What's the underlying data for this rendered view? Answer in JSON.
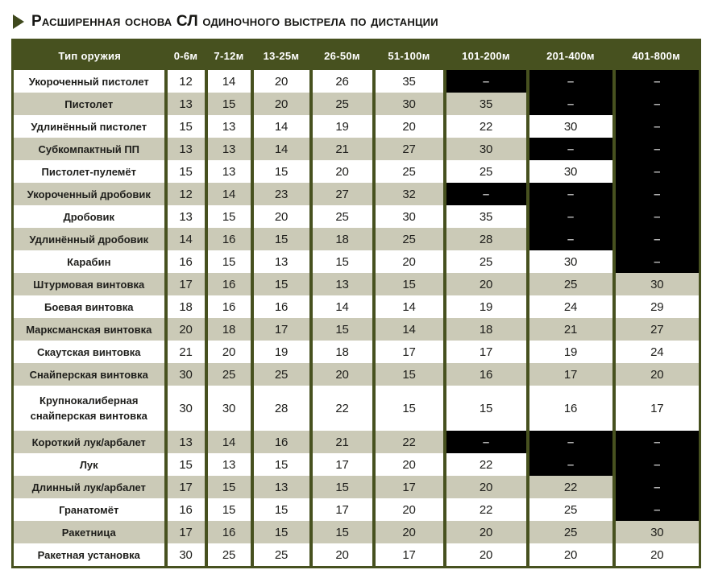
{
  "title": "Расширенная основа СЛ одиночного выстрела по дистанции",
  "colors": {
    "olive_header": "#47511f",
    "row_shade": "#cbcab7",
    "na_cell_bg": "#000000",
    "na_dash": "#b4b4b4",
    "header_text": "#ffffff",
    "body_text": "#1e1e1b"
  },
  "table": {
    "na_symbol": "–",
    "headers": [
      "Тип оружия",
      "0-6м",
      "7-12м",
      "13-25м",
      "26-50м",
      "51-100м",
      "101-200м",
      "201-400м",
      "401-800м"
    ],
    "rows": [
      {
        "name": "Укороченный пистолет",
        "values": [
          12,
          14,
          20,
          26,
          35,
          null,
          null,
          null
        ]
      },
      {
        "name": "Пистолет",
        "values": [
          13,
          15,
          20,
          25,
          30,
          35,
          null,
          null
        ]
      },
      {
        "name": "Удлинённый пистолет",
        "values": [
          15,
          13,
          14,
          19,
          20,
          22,
          30,
          null
        ]
      },
      {
        "name": "Субкомпактный ПП",
        "values": [
          13,
          13,
          14,
          21,
          27,
          30,
          null,
          null
        ]
      },
      {
        "name": "Пистолет-пулемёт",
        "values": [
          15,
          13,
          15,
          20,
          25,
          25,
          30,
          null
        ]
      },
      {
        "name": "Укороченный дробовик",
        "values": [
          12,
          14,
          23,
          27,
          32,
          null,
          null,
          null
        ]
      },
      {
        "name": "Дробовик",
        "values": [
          13,
          15,
          20,
          25,
          30,
          35,
          null,
          null
        ]
      },
      {
        "name": "Удлинённый дробовик",
        "values": [
          14,
          16,
          15,
          18,
          25,
          28,
          null,
          null
        ]
      },
      {
        "name": "Карабин",
        "values": [
          16,
          15,
          13,
          15,
          20,
          25,
          30,
          null
        ]
      },
      {
        "name": "Штурмовая винтовка",
        "values": [
          17,
          16,
          15,
          13,
          15,
          20,
          25,
          30
        ]
      },
      {
        "name": "Боевая винтовка",
        "values": [
          18,
          16,
          16,
          14,
          14,
          19,
          24,
          29
        ]
      },
      {
        "name": "Марксманская винтовка",
        "values": [
          20,
          18,
          17,
          15,
          14,
          18,
          21,
          27
        ]
      },
      {
        "name": "Скаутская винтовка",
        "values": [
          21,
          20,
          19,
          18,
          17,
          17,
          19,
          24
        ]
      },
      {
        "name": "Снайперская винтовка",
        "values": [
          30,
          25,
          25,
          20,
          15,
          16,
          17,
          20
        ]
      },
      {
        "name": "Крупнокалиберная снайперская винтовка",
        "values": [
          30,
          30,
          28,
          22,
          15,
          15,
          16,
          17
        ],
        "tall": true
      },
      {
        "name": "Короткий лук/арбалет",
        "values": [
          13,
          14,
          16,
          21,
          22,
          null,
          null,
          null
        ]
      },
      {
        "name": "Лук",
        "values": [
          15,
          13,
          15,
          17,
          20,
          22,
          null,
          null
        ]
      },
      {
        "name": "Длинный лук/арбалет",
        "values": [
          17,
          15,
          13,
          15,
          17,
          20,
          22,
          null
        ]
      },
      {
        "name": "Гранатомёт",
        "values": [
          16,
          15,
          15,
          17,
          20,
          22,
          25,
          null
        ]
      },
      {
        "name": "Ракетница",
        "values": [
          17,
          16,
          15,
          15,
          20,
          20,
          25,
          30
        ]
      },
      {
        "name": "Ракетная установка",
        "values": [
          30,
          25,
          25,
          20,
          17,
          20,
          20,
          20
        ]
      }
    ]
  }
}
